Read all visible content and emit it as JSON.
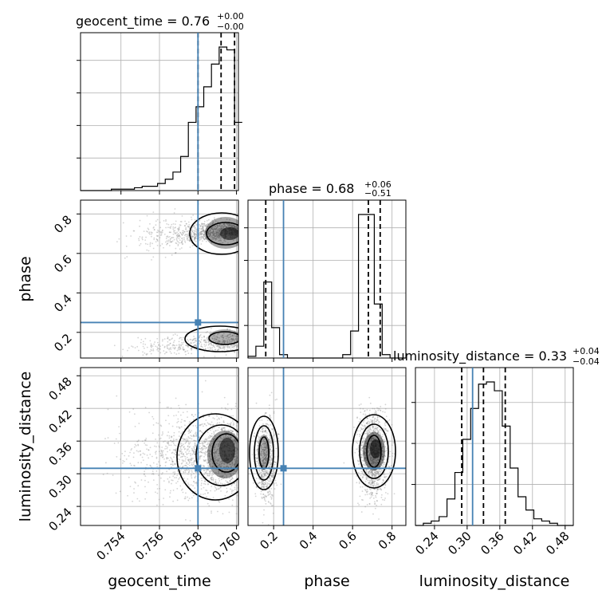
{
  "chart_data": {
    "type": "corner",
    "parameters": [
      "geocent_time",
      "phase",
      "luminosity_distance"
    ],
    "injection": {
      "geocent_time": 0.758,
      "phase": 0.25,
      "luminosity_distance": 0.31,
      "color": "#4682b4"
    },
    "titles": [
      {
        "name": "geocent_time",
        "eq": " = 0.76",
        "sup": "+0.00",
        "sub": "−0.00"
      },
      {
        "name": "phase",
        "eq": " = 0.68",
        "sup": "+0.06",
        "sub": "−0.51"
      },
      {
        "name": "luminosity_distance",
        "eq": " = 0.33",
        "sup": "+0.04",
        "sub": "−0.04"
      }
    ],
    "axis_labels": {
      "geocent_time": "geocent_time",
      "phase": "phase",
      "luminosity_distance": "luminosity_distance"
    },
    "ranges": {
      "geocent_time": [
        0.7519,
        0.7601
      ],
      "phase": [
        0.07,
        0.87
      ],
      "luminosity_distance": [
        0.205,
        0.495
      ]
    },
    "ticks": {
      "geocent_time": [
        0.754,
        0.756,
        0.758,
        0.76
      ],
      "phase": [
        0.2,
        0.4,
        0.6,
        0.8
      ],
      "luminosity_distance": [
        0.24,
        0.3,
        0.36,
        0.42,
        0.48
      ]
    },
    "tick_labels": {
      "geocent_time": [
        "0.754",
        "0.756",
        "0.758",
        "0.760"
      ],
      "phase": [
        "0.2",
        "0.4",
        "0.6",
        "0.8"
      ],
      "luminosity_distance": [
        "0.24",
        "0.30",
        "0.36",
        "0.42",
        "0.48"
      ]
    },
    "quantiles": {
      "geocent_time": [
        0.758,
        0.7592,
        0.7599
      ],
      "phase": [
        0.16,
        0.68,
        0.74
      ],
      "luminosity_distance": [
        0.29,
        0.33,
        0.37
      ]
    },
    "hist_1d": {
      "geocent_time": {
        "edges_start": 0.7519,
        "bin_width": 0.0004,
        "counts": [
          0,
          0,
          0,
          0,
          1,
          1,
          1,
          2,
          3,
          3,
          5,
          8,
          13,
          24,
          48,
          59,
          73,
          89,
          101,
          99,
          48
        ]
      },
      "phase": {
        "edges_start": 0.07,
        "bin_width": 0.04,
        "counts": [
          1,
          7,
          45,
          18,
          2,
          0,
          0,
          0,
          0,
          0,
          0,
          0,
          2,
          16,
          85,
          85,
          32,
          2,
          0,
          0
        ]
      },
      "luminosity_distance": {
        "edges_start": 0.205,
        "bin_width": 0.0145,
        "counts": [
          0,
          1,
          2,
          4,
          12,
          24,
          39,
          53,
          64,
          65,
          61,
          45,
          26,
          13,
          7,
          3,
          2,
          1,
          0,
          0
        ]
      }
    },
    "hist_style": {
      "color": "#000000",
      "grid": true
    }
  }
}
